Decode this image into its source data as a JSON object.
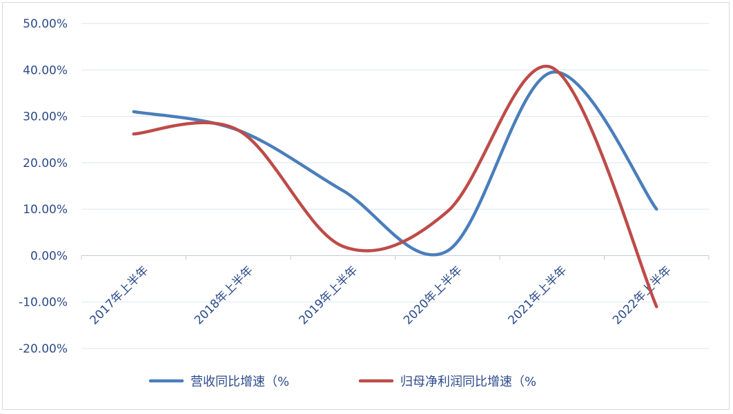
{
  "chart_data": {
    "type": "line",
    "categories": [
      "2017年上半年",
      "2018年上半年",
      "2019年上半年",
      "2020年上半年",
      "2021年上半年",
      "2022年上半年"
    ],
    "series": [
      {
        "name": "营收同比增速（%",
        "color": "#4a7ebb",
        "values": [
          31.0,
          27.0,
          14.0,
          1.0,
          39.5,
          10.0
        ]
      },
      {
        "name": "归母净利润同比增速（%",
        "color": "#be4b48",
        "values": [
          26.2,
          27.0,
          2.0,
          9.5,
          40.5,
          -11.0
        ]
      }
    ],
    "y_tick_labels": [
      "-20.00%",
      "-10.00%",
      "0.00%",
      "10.00%",
      "20.00%",
      "30.00%",
      "40.00%",
      "50.00%"
    ],
    "ylim": [
      -20,
      50
    ],
    "y_step": 10,
    "grid": true,
    "legend_position": "bottom",
    "title": "",
    "xlabel": "",
    "ylabel": ""
  }
}
